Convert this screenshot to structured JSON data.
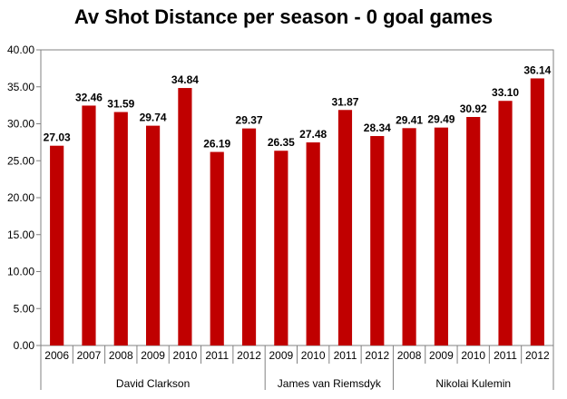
{
  "chart_data": {
    "type": "bar",
    "title": "Av Shot Distance per season - 0 goal games",
    "xlabel": "",
    "ylabel": "",
    "ylim": [
      0,
      40
    ],
    "yticks": [
      "0.00",
      "5.00",
      "10.00",
      "15.00",
      "20.00",
      "25.00",
      "30.00",
      "35.00",
      "40.00"
    ],
    "grid": false,
    "bar_color": "#c00000",
    "groups": [
      {
        "name": "David Clarkson",
        "categories": [
          "2006",
          "2007",
          "2008",
          "2009",
          "2010",
          "2011",
          "2012"
        ],
        "values": [
          27.03,
          32.46,
          31.59,
          29.74,
          34.84,
          26.19,
          29.37
        ],
        "labels": [
          "27.03",
          "32.46",
          "31.59",
          "29.74",
          "34.84",
          "26.19",
          "29.37"
        ]
      },
      {
        "name": "James van Riemsdyk",
        "categories": [
          "2009",
          "2010",
          "2011",
          "2012"
        ],
        "values": [
          26.35,
          27.48,
          31.87,
          28.34
        ],
        "labels": [
          "26.35",
          "27.48",
          "31.87",
          "28.34"
        ]
      },
      {
        "name": "Nikolai Kulemin",
        "categories": [
          "2008",
          "2009",
          "2010",
          "2011",
          "2012"
        ],
        "values": [
          29.41,
          29.49,
          30.92,
          33.1,
          36.14
        ],
        "labels": [
          "29.41",
          "29.49",
          "30.92",
          "33.10",
          "36.14"
        ]
      }
    ]
  }
}
